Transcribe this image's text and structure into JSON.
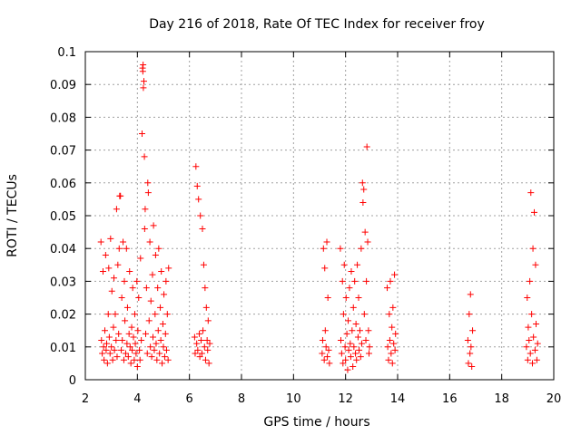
{
  "chart_data": {
    "type": "scatter",
    "title": "Day 216 of 2018, Rate Of TEC Index for receiver froy",
    "xlabel": "GPS time / hours",
    "ylabel": "ROTI / TECUs",
    "xlim": [
      2,
      20
    ],
    "ylim": [
      0,
      0.1
    ],
    "xticks": [
      "2",
      "4",
      "6",
      "8",
      "10",
      "12",
      "14",
      "16",
      "18",
      "20"
    ],
    "yticks": [
      "0",
      "0.01",
      "0.02",
      "0.03",
      "0.04",
      "0.05",
      "0.06",
      "0.07",
      "0.08",
      "0.09",
      "0.1"
    ],
    "grid": true,
    "marker": "+",
    "series_color": "#ff0000",
    "series": [
      {
        "name": "ROTI",
        "points": [
          [
            2.6,
            0.042
          ],
          [
            2.62,
            0.012
          ],
          [
            2.65,
            0.008
          ],
          [
            2.68,
            0.033
          ],
          [
            2.7,
            0.01
          ],
          [
            2.72,
            0.006
          ],
          [
            2.75,
            0.015
          ],
          [
            2.78,
            0.038
          ],
          [
            2.8,
            0.009
          ],
          [
            2.82,
            0.011
          ],
          [
            2.85,
            0.005
          ],
          [
            2.88,
            0.02
          ],
          [
            2.9,
            0.034
          ],
          [
            2.92,
            0.013
          ],
          [
            2.95,
            0.008
          ],
          [
            2.97,
            0.043
          ],
          [
            3.0,
            0.01
          ],
          [
            3.02,
            0.027
          ],
          [
            3.05,
            0.006
          ],
          [
            3.08,
            0.016
          ],
          [
            3.1,
            0.031
          ],
          [
            3.12,
            0.009
          ],
          [
            3.15,
            0.02
          ],
          [
            3.18,
            0.012
          ],
          [
            3.2,
            0.052
          ],
          [
            3.22,
            0.007
          ],
          [
            3.25,
            0.035
          ],
          [
            3.28,
            0.014
          ],
          [
            3.3,
            0.04
          ],
          [
            3.32,
            0.056
          ],
          [
            3.35,
            0.056
          ],
          [
            3.38,
            0.009
          ],
          [
            3.4,
            0.025
          ],
          [
            3.42,
            0.012
          ],
          [
            3.45,
            0.042
          ],
          [
            3.48,
            0.006
          ],
          [
            3.5,
            0.03
          ],
          [
            3.52,
            0.018
          ],
          [
            3.55,
            0.008
          ],
          [
            3.58,
            0.04
          ],
          [
            3.6,
            0.011
          ],
          [
            3.62,
            0.022
          ],
          [
            3.65,
            0.007
          ],
          [
            3.68,
            0.014
          ],
          [
            3.7,
            0.033
          ],
          [
            3.72,
            0.01
          ],
          [
            3.75,
            0.005
          ],
          [
            3.78,
            0.016
          ],
          [
            3.8,
            0.009
          ],
          [
            3.82,
            0.028
          ],
          [
            3.85,
            0.013
          ],
          [
            3.88,
            0.006
          ],
          [
            3.9,
            0.02
          ],
          [
            3.92,
            0.011
          ],
          [
            3.95,
            0.008
          ],
          [
            3.98,
            0.03
          ],
          [
            4.0,
            0.004
          ],
          [
            4.02,
            0.015
          ],
          [
            4.05,
            0.025
          ],
          [
            4.08,
            0.009
          ],
          [
            4.1,
            0.006
          ],
          [
            4.12,
            0.037
          ],
          [
            4.15,
            0.012
          ],
          [
            4.18,
            0.075
          ],
          [
            4.2,
            0.095
          ],
          [
            4.21,
            0.094
          ],
          [
            4.22,
            0.096
          ],
          [
            4.23,
            0.089
          ],
          [
            4.25,
            0.091
          ],
          [
            4.27,
            0.068
          ],
          [
            4.28,
            0.046
          ],
          [
            4.3,
            0.052
          ],
          [
            4.32,
            0.014
          ],
          [
            4.35,
            0.028
          ],
          [
            4.38,
            0.008
          ],
          [
            4.4,
            0.06
          ],
          [
            4.42,
            0.057
          ],
          [
            4.45,
            0.018
          ],
          [
            4.48,
            0.042
          ],
          [
            4.5,
            0.01
          ],
          [
            4.52,
            0.024
          ],
          [
            4.55,
            0.007
          ],
          [
            4.58,
            0.032
          ],
          [
            4.6,
            0.013
          ],
          [
            4.62,
            0.047
          ],
          [
            4.65,
            0.009
          ],
          [
            4.68,
            0.02
          ],
          [
            4.7,
            0.038
          ],
          [
            4.72,
            0.011
          ],
          [
            4.75,
            0.006
          ],
          [
            4.78,
            0.028
          ],
          [
            4.8,
            0.015
          ],
          [
            4.82,
            0.04
          ],
          [
            4.85,
            0.008
          ],
          [
            4.88,
            0.022
          ],
          [
            4.9,
            0.012
          ],
          [
            4.92,
            0.033
          ],
          [
            4.95,
            0.005
          ],
          [
            4.98,
            0.017
          ],
          [
            5.0,
            0.01
          ],
          [
            5.02,
            0.026
          ],
          [
            5.05,
            0.007
          ],
          [
            5.08,
            0.014
          ],
          [
            5.1,
            0.03
          ],
          [
            5.12,
            0.009
          ],
          [
            5.15,
            0.02
          ],
          [
            5.18,
            0.006
          ],
          [
            5.2,
            0.034
          ],
          [
            6.2,
            0.013
          ],
          [
            6.22,
            0.008
          ],
          [
            6.25,
            0.065
          ],
          [
            6.28,
            0.011
          ],
          [
            6.3,
            0.059
          ],
          [
            6.32,
            0.009
          ],
          [
            6.35,
            0.055
          ],
          [
            6.38,
            0.014
          ],
          [
            6.4,
            0.007
          ],
          [
            6.42,
            0.05
          ],
          [
            6.45,
            0.012
          ],
          [
            6.48,
            0.008
          ],
          [
            6.5,
            0.046
          ],
          [
            6.52,
            0.015
          ],
          [
            6.55,
            0.035
          ],
          [
            6.58,
            0.01
          ],
          [
            6.6,
            0.028
          ],
          [
            6.62,
            0.006
          ],
          [
            6.65,
            0.022
          ],
          [
            6.68,
            0.012
          ],
          [
            6.7,
            0.009
          ],
          [
            6.72,
            0.018
          ],
          [
            6.75,
            0.005
          ],
          [
            6.78,
            0.011
          ],
          [
            11.1,
            0.008
          ],
          [
            11.12,
            0.012
          ],
          [
            11.15,
            0.04
          ],
          [
            11.18,
            0.006
          ],
          [
            11.2,
            0.034
          ],
          [
            11.22,
            0.015
          ],
          [
            11.25,
            0.01
          ],
          [
            11.28,
            0.042
          ],
          [
            11.3,
            0.007
          ],
          [
            11.32,
            0.025
          ],
          [
            11.35,
            0.009
          ],
          [
            11.38,
            0.005
          ],
          [
            11.8,
            0.04
          ],
          [
            11.82,
            0.012
          ],
          [
            11.85,
            0.008
          ],
          [
            11.88,
            0.03
          ],
          [
            11.9,
            0.005
          ],
          [
            11.92,
            0.02
          ],
          [
            11.95,
            0.035
          ],
          [
            11.98,
            0.01
          ],
          [
            12.0,
            0.006
          ],
          [
            12.02,
            0.025
          ],
          [
            12.05,
            0.014
          ],
          [
            12.08,
            0.003
          ],
          [
            12.1,
            0.018
          ],
          [
            12.12,
            0.009
          ],
          [
            12.15,
            0.028
          ],
          [
            12.18,
            0.011
          ],
          [
            12.2,
            0.007
          ],
          [
            12.22,
            0.033
          ],
          [
            12.25,
            0.015
          ],
          [
            12.28,
            0.004
          ],
          [
            12.3,
            0.022
          ],
          [
            12.32,
            0.01
          ],
          [
            12.35,
            0.03
          ],
          [
            12.38,
            0.008
          ],
          [
            12.4,
            0.017
          ],
          [
            12.42,
            0.006
          ],
          [
            12.45,
            0.035
          ],
          [
            12.48,
            0.013
          ],
          [
            12.5,
            0.025
          ],
          [
            12.52,
            0.009
          ],
          [
            12.55,
            0.015
          ],
          [
            12.58,
            0.007
          ],
          [
            12.6,
            0.04
          ],
          [
            12.62,
            0.011
          ],
          [
            12.65,
            0.06
          ],
          [
            12.67,
            0.054
          ],
          [
            12.7,
            0.058
          ],
          [
            12.72,
            0.02
          ],
          [
            12.75,
            0.045
          ],
          [
            12.78,
            0.012
          ],
          [
            12.8,
            0.03
          ],
          [
            12.82,
            0.071
          ],
          [
            12.85,
            0.042
          ],
          [
            12.88,
            0.015
          ],
          [
            12.9,
            0.008
          ],
          [
            12.92,
            0.01
          ],
          [
            13.6,
            0.028
          ],
          [
            13.62,
            0.01
          ],
          [
            13.65,
            0.006
          ],
          [
            13.68,
            0.02
          ],
          [
            13.7,
            0.012
          ],
          [
            13.72,
            0.03
          ],
          [
            13.75,
            0.008
          ],
          [
            13.78,
            0.016
          ],
          [
            13.8,
            0.005
          ],
          [
            13.82,
            0.022
          ],
          [
            13.85,
            0.011
          ],
          [
            13.88,
            0.032
          ],
          [
            13.9,
            0.009
          ],
          [
            13.92,
            0.014
          ],
          [
            16.7,
            0.012
          ],
          [
            16.72,
            0.005
          ],
          [
            16.75,
            0.02
          ],
          [
            16.78,
            0.008
          ],
          [
            16.8,
            0.026
          ],
          [
            16.82,
            0.01
          ],
          [
            16.85,
            0.004
          ],
          [
            16.88,
            0.015
          ],
          [
            18.95,
            0.01
          ],
          [
            18.98,
            0.025
          ],
          [
            19.0,
            0.006
          ],
          [
            19.02,
            0.016
          ],
          [
            19.05,
            0.012
          ],
          [
            19.08,
            0.03
          ],
          [
            19.1,
            0.008
          ],
          [
            19.12,
            0.057
          ],
          [
            19.15,
            0.02
          ],
          [
            19.18,
            0.005
          ],
          [
            19.2,
            0.04
          ],
          [
            19.22,
            0.013
          ],
          [
            19.25,
            0.051
          ],
          [
            19.28,
            0.009
          ],
          [
            19.3,
            0.035
          ],
          [
            19.32,
            0.017
          ],
          [
            19.35,
            0.006
          ],
          [
            19.38,
            0.011
          ]
        ]
      }
    ]
  }
}
